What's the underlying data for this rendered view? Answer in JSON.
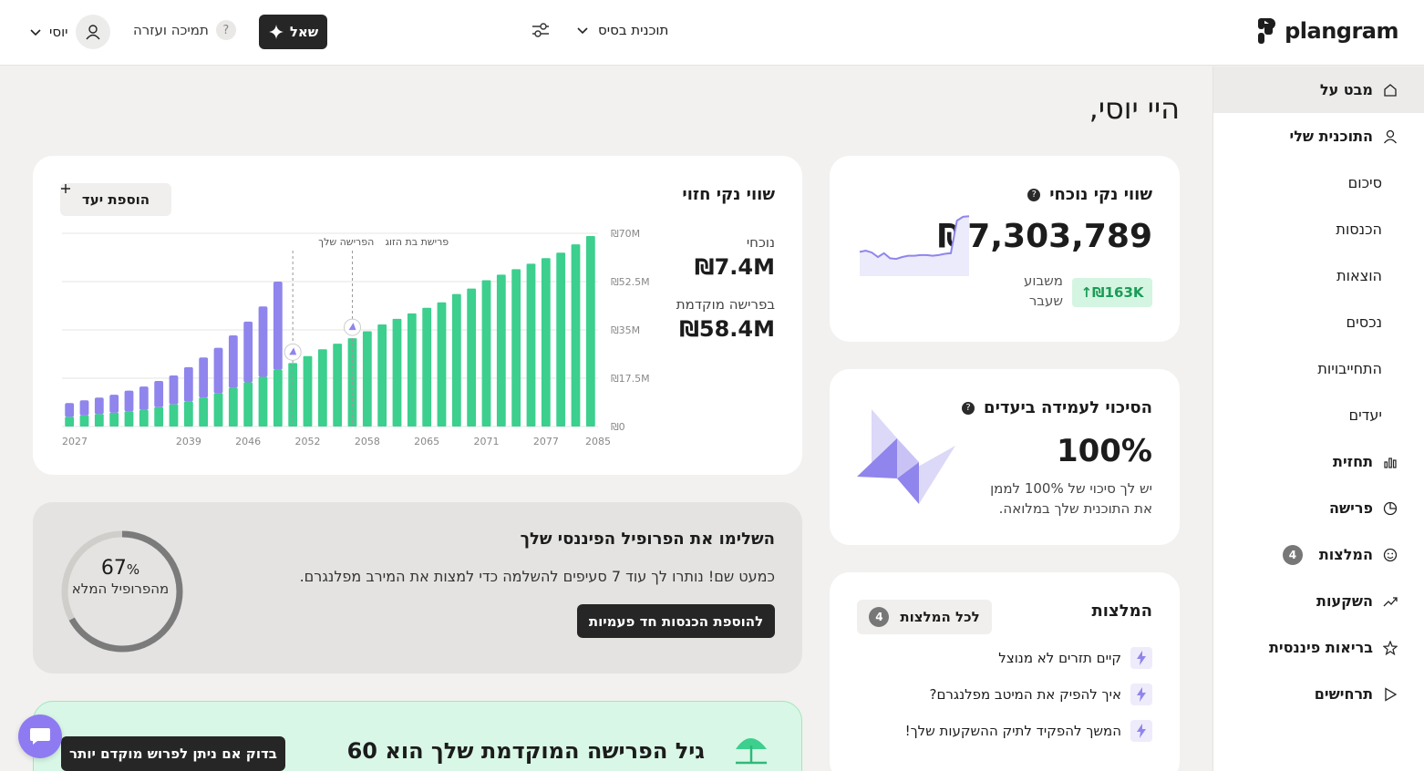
{
  "app": {
    "brand": "plangram"
  },
  "topbar": {
    "plan_label": "תוכנית בסיס",
    "ask_label": "שאל",
    "help_label": "תמיכה ועזרה",
    "help_icon": "?",
    "user_name": "יוסי"
  },
  "sidebar": {
    "items": [
      {
        "label": "מבט על",
        "icon": "home-icon",
        "active": true,
        "bold": true
      },
      {
        "label": "התוכנית שלי",
        "icon": "user-icon",
        "bold": true
      },
      {
        "label": "סיכום",
        "sub": true
      },
      {
        "label": "הכנסות",
        "sub": true
      },
      {
        "label": "הוצאות",
        "sub": true
      },
      {
        "label": "נכסים",
        "sub": true
      },
      {
        "label": "התחייבויות",
        "sub": true
      },
      {
        "label": "יעדים",
        "sub": true
      },
      {
        "label": "תחזית",
        "icon": "bar-chart-icon",
        "bold": true
      },
      {
        "label": "פרישה",
        "icon": "pie-icon",
        "bold": true
      },
      {
        "label": "המלצות",
        "icon": "smile-icon",
        "bold": true,
        "badge": "4"
      },
      {
        "label": "השקעות",
        "icon": "trend-icon",
        "bold": true
      },
      {
        "label": "בריאות פיננסית",
        "icon": "star-icon",
        "bold": true
      },
      {
        "label": "תרחישים",
        "icon": "play-icon",
        "bold": true
      }
    ]
  },
  "main": {
    "greeting": "היי יוסי,",
    "net_worth": {
      "title": "שווי נקי נוכחי",
      "info": "?",
      "value": "₪7,303,789",
      "change": "↑₪163K",
      "period": "משבוע שעבר",
      "sparkline": [
        0.38,
        0.4,
        0.37,
        0.3,
        0.36,
        0.28,
        0.27,
        0.3,
        0.32,
        0.32,
        0.33,
        0.33,
        0.32,
        0.33,
        0.35,
        0.36,
        0.87,
        0.93,
        0.94
      ]
    },
    "success": {
      "title": "הסיכוי לעמידה ביעדים",
      "info": "?",
      "value": "100%",
      "description": "יש לך סיכוי של 100% לממן את התוכנית שלך במלואה."
    },
    "recommendations": {
      "title": "המלצות",
      "all_label": "לכל המלצות",
      "count": "4",
      "items": [
        "קיים תזרים לא מנוצל",
        "איך להפיק את המיטב מפלנגרם?",
        "המשך להפקיד לתיק ההשקעות שלך!"
      ]
    },
    "forecast": {
      "title": "שווי נקי חזוי",
      "add_goal_label": "הוספת יעד",
      "current_label": "נוכחי",
      "current_value": "₪7.4M",
      "early_label": "בפרישה מוקדמת",
      "early_value": "₪58.4M",
      "markers": [
        "הפרישה שלך",
        "פרישת בת הזוג"
      ]
    },
    "profile": {
      "title": "השלימו את הפרופיל הפיננסי שלך",
      "description": "כמעט שם! נותרו לך עוד 7 סעיפים להשלמה כדי למצות את המירב מפלנגרם.",
      "cta": "להוספת הכנסות חד פעמיות",
      "percent": "67",
      "percent_sign": "%",
      "percent_value": 0.67,
      "ring_label": "מהפרופיל המלא"
    },
    "retirement": {
      "title": "גיל הפרישה המוקדמת שלך הוא 60",
      "cta": "בדוק אם ניתן לפרוש מוקדם יותר"
    }
  },
  "colors": {
    "green": "#3ccf8e",
    "purple": "#8f85ec",
    "dark": "#262626"
  },
  "chart_data": {
    "type": "bar",
    "stacked": true,
    "x_tick_labels": [
      "2027",
      "2039",
      "2046",
      "2052",
      "2058",
      "2065",
      "2071",
      "2077",
      "2085"
    ],
    "y_tick_labels": [
      "₪0",
      "₪17.5M",
      "₪35M",
      "₪52.5M",
      "₪70M"
    ],
    "ylim": [
      0,
      70
    ],
    "y_unit": "M",
    "series": [
      {
        "color": "#3ccf8e",
        "values": [
          3.5,
          4,
          4.5,
          5,
          5.5,
          6,
          7,
          8,
          9,
          10.5,
          12,
          14,
          16,
          18,
          20.5,
          23,
          25.5,
          28,
          30,
          32,
          34.5,
          37,
          39,
          41,
          43,
          45,
          48,
          50,
          53,
          55,
          57,
          59,
          61,
          63,
          66,
          69
        ]
      },
      {
        "color": "#8f85ec",
        "values": [
          5,
          5.5,
          6,
          6.5,
          7.5,
          8.5,
          9.5,
          10.5,
          12.5,
          14.5,
          16.5,
          19,
          22,
          25.5,
          32,
          0,
          0,
          0,
          0,
          0,
          0,
          0,
          0,
          0,
          0,
          0,
          0,
          0,
          0,
          0,
          0,
          0,
          0,
          0,
          0,
          0
        ]
      }
    ],
    "markers": [
      {
        "bar_index": 14,
        "label": "הפרישה שלך"
      },
      {
        "bar_index": 18,
        "label": "פרישת בת הזוג"
      }
    ]
  }
}
